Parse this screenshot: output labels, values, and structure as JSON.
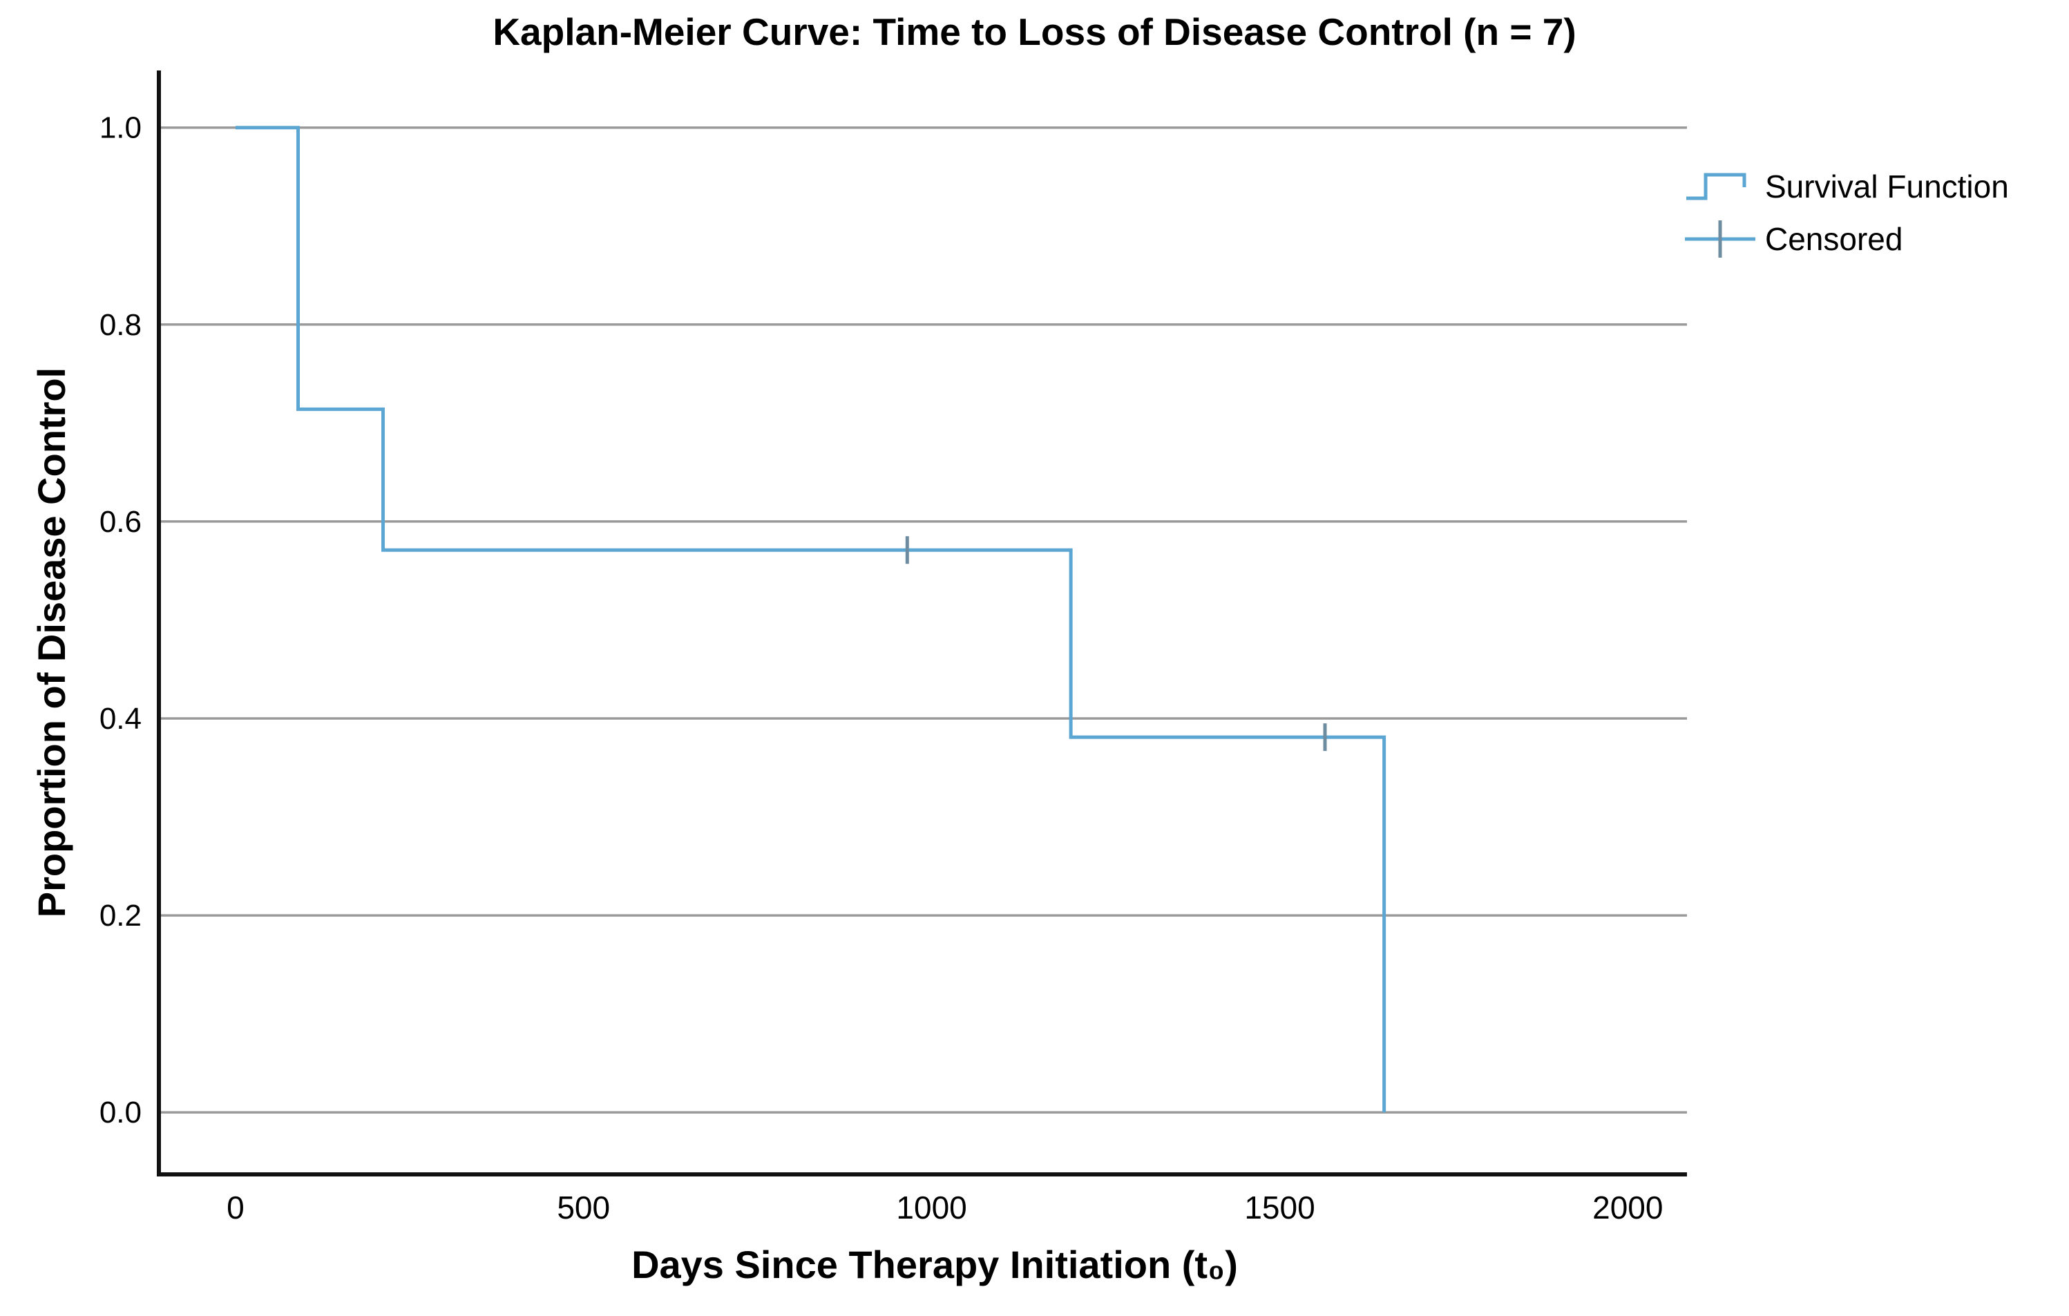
{
  "chart_data": {
    "type": "line",
    "subtype": "kaplan-meier-step-function",
    "title": "Kaplan-Meier Curve: Time to Loss of Disease Control (n = 7)",
    "xlabel": "Days Since Therapy Initiation (t₀)",
    "ylabel": "Proportion of Disease Control",
    "n": 7,
    "xlim": [
      -110,
      2085
    ],
    "ylim": [
      -0.063,
      1.058
    ],
    "xticks": [
      "0",
      "500",
      "1000",
      "1500",
      "2000"
    ],
    "yticks": [
      "1.0",
      "0.8",
      "0.6",
      "0.4",
      "0.2",
      "0.0"
    ],
    "grid": "horizontal-only",
    "legend_position": "outside-upper-right",
    "series": [
      {
        "name": "Survival Function",
        "type": "step",
        "points": [
          [
            0,
            1.0
          ],
          [
            90,
            1.0
          ],
          [
            90,
            0.714
          ],
          [
            212,
            0.714
          ],
          [
            212,
            0.571
          ],
          [
            1200,
            0.571
          ],
          [
            1200,
            0.381
          ],
          [
            1650,
            0.381
          ],
          [
            1650,
            0.0
          ]
        ]
      },
      {
        "name": "Censored",
        "type": "plus-marker",
        "points": [
          [
            965,
            0.571
          ],
          [
            1565,
            0.381
          ]
        ]
      }
    ],
    "survival_steps": [
      {
        "days": "0–90",
        "proportion": 1.0
      },
      {
        "days": "90–212",
        "proportion": 0.714
      },
      {
        "days": "212–1200",
        "proportion": 0.571
      },
      {
        "days": "1200–1650",
        "proportion": 0.381
      },
      {
        "days": "1650",
        "proportion": 0.0
      }
    ],
    "legend": [
      {
        "label": "Survival Function",
        "symbol": "step-line"
      },
      {
        "label": "Censored",
        "symbol": "plus-marker"
      }
    ],
    "colors": {
      "curve": "#5ba6d2",
      "censor_tick": "#6e8ca0",
      "gridline": "#9a9a9a",
      "axis": "#111111",
      "text": "#000000",
      "background": "#ffffff"
    }
  }
}
